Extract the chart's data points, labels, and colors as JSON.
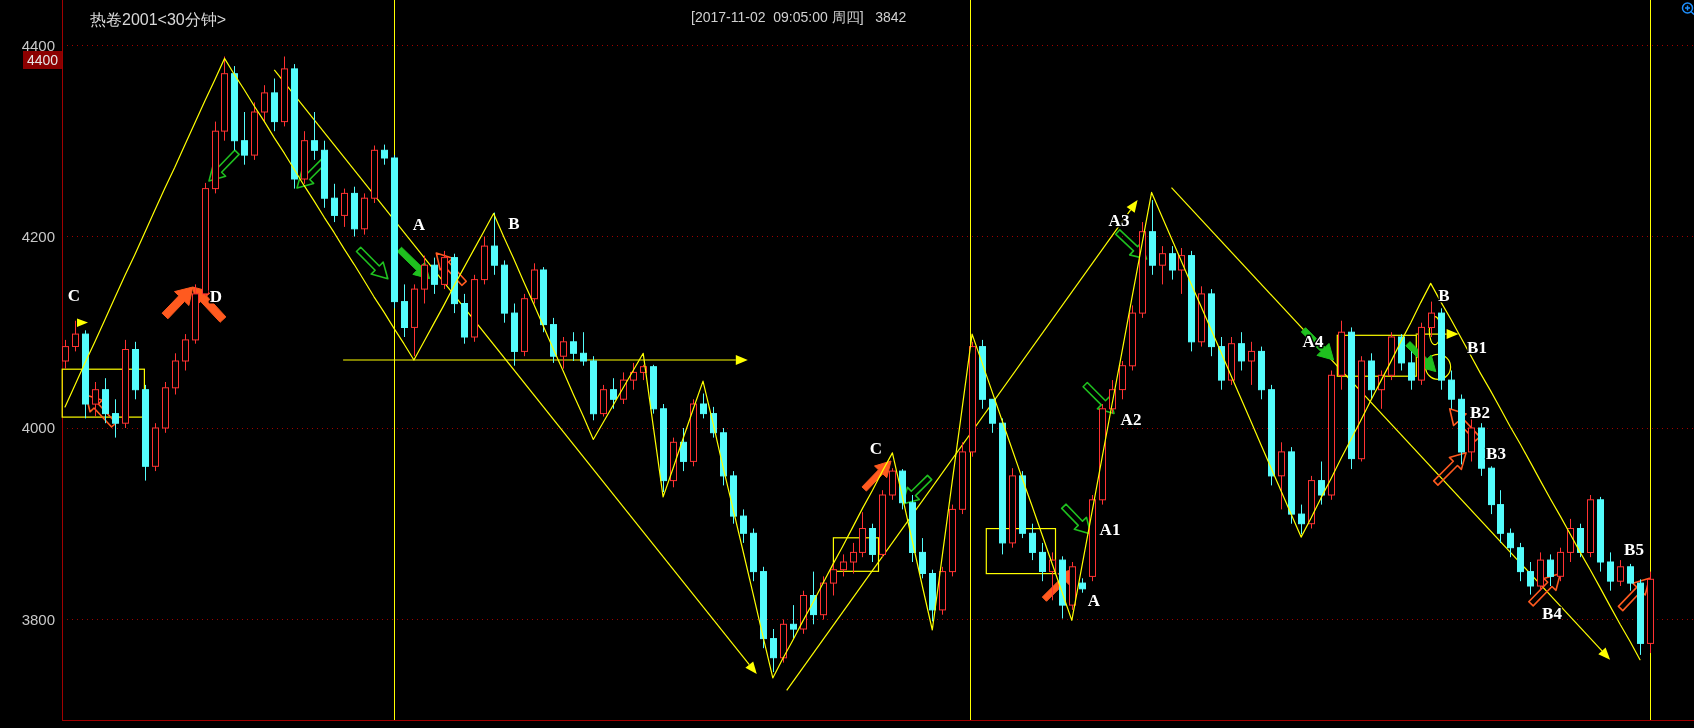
{
  "chart_data": {
    "type": "candlestick",
    "title": "热卷2001<30分钟>",
    "subtitle": "[2017-11-02  09:05:00 周四]   3842",
    "categories": [
      null,
      null,
      null,
      null,
      null,
      null,
      null,
      null,
      null,
      null,
      null,
      null,
      null,
      null,
      null,
      null,
      null,
      null,
      null,
      null,
      null,
      null,
      null,
      null,
      null,
      null,
      null,
      null,
      null,
      null,
      null,
      null,
      null,
      null,
      null,
      null,
      null,
      null,
      null,
      null,
      null,
      null,
      null,
      null,
      null,
      null,
      null,
      null,
      null,
      null,
      null,
      null,
      null,
      null,
      null,
      null,
      null,
      null,
      null,
      null,
      null,
      null,
      null,
      null,
      null,
      null,
      null,
      null,
      null,
      null,
      null,
      null,
      null,
      null,
      null,
      null,
      null,
      null,
      null,
      null,
      null,
      null,
      null,
      null,
      null,
      null,
      null,
      null,
      null,
      null,
      null,
      null,
      null,
      null,
      null,
      null,
      null,
      null,
      null,
      null,
      null,
      null,
      null,
      null,
      null,
      null,
      null,
      null,
      null,
      null,
      null,
      null,
      null,
      null,
      null,
      null,
      null,
      null,
      null,
      null,
      null,
      null,
      null,
      null,
      null,
      null,
      null,
      null,
      null,
      null,
      null,
      null,
      null,
      null,
      null,
      null,
      null,
      null,
      null,
      null,
      null,
      null,
      null,
      null,
      null,
      null,
      null,
      null,
      null,
      null,
      null,
      null,
      null,
      null,
      null,
      null,
      null,
      null,
      null,
      null
    ],
    "ohlc": [
      [
        4070,
        4092,
        4062,
        4085
      ],
      [
        4085,
        4112,
        4080,
        4098
      ],
      [
        4098,
        4102,
        4010,
        4025
      ],
      [
        4025,
        4048,
        4012,
        4040
      ],
      [
        4040,
        4052,
        4005,
        4015
      ],
      [
        4015,
        4030,
        3990,
        4005
      ],
      [
        4005,
        4092,
        4000,
        4082
      ],
      [
        4082,
        4090,
        4030,
        4040
      ],
      [
        4040,
        4045,
        3945,
        3960
      ],
      [
        3960,
        4005,
        3955,
        4000
      ],
      [
        4000,
        4048,
        3995,
        4042
      ],
      [
        4042,
        4078,
        4035,
        4070
      ],
      [
        4070,
        4098,
        4060,
        4092
      ],
      [
        4092,
        4150,
        4088,
        4140
      ],
      [
        4140,
        4256,
        4138,
        4250
      ],
      [
        4250,
        4320,
        4245,
        4310
      ],
      [
        4310,
        4388,
        4300,
        4370
      ],
      [
        4370,
        4378,
        4290,
        4300
      ],
      [
        4300,
        4330,
        4275,
        4285
      ],
      [
        4285,
        4340,
        4280,
        4330
      ],
      [
        4330,
        4358,
        4320,
        4350
      ],
      [
        4350,
        4365,
        4310,
        4320
      ],
      [
        4320,
        4388,
        4315,
        4375
      ],
      [
        4375,
        4380,
        4250,
        4260
      ],
      [
        4260,
        4310,
        4255,
        4300
      ],
      [
        4300,
        4330,
        4280,
        4290
      ],
      [
        4290,
        4300,
        4230,
        4240
      ],
      [
        4240,
        4255,
        4215,
        4222
      ],
      [
        4222,
        4250,
        4210,
        4245
      ],
      [
        4245,
        4252,
        4200,
        4208
      ],
      [
        4208,
        4245,
        4202,
        4240
      ],
      [
        4240,
        4295,
        4235,
        4290
      ],
      [
        4290,
        4296,
        4275,
        4282
      ],
      [
        4282,
        4285,
        4125,
        4132
      ],
      [
        4132,
        4150,
        4095,
        4105
      ],
      [
        4105,
        4150,
        4075,
        4145
      ],
      [
        4145,
        4180,
        4130,
        4170
      ],
      [
        4170,
        4178,
        4140,
        4150
      ],
      [
        4150,
        4185,
        4145,
        4178
      ],
      [
        4178,
        4182,
        4120,
        4130
      ],
      [
        4130,
        4140,
        4088,
        4095
      ],
      [
        4095,
        4160,
        4090,
        4155
      ],
      [
        4155,
        4200,
        4150,
        4190
      ],
      [
        4190,
        4225,
        4160,
        4170
      ],
      [
        4170,
        4175,
        4110,
        4120
      ],
      [
        4120,
        4130,
        4065,
        4080
      ],
      [
        4080,
        4140,
        4075,
        4135
      ],
      [
        4135,
        4172,
        4130,
        4165
      ],
      [
        4165,
        4168,
        4100,
        4108
      ],
      [
        4108,
        4115,
        4068,
        4075
      ],
      [
        4075,
        4095,
        4062,
        4090
      ],
      [
        4090,
        4100,
        4070,
        4078
      ],
      [
        4078,
        4100,
        4065,
        4070
      ],
      [
        4070,
        4075,
        4008,
        4015
      ],
      [
        4015,
        4045,
        4012,
        4040
      ],
      [
        4040,
        4052,
        4020,
        4030
      ],
      [
        4030,
        4058,
        4025,
        4050
      ],
      [
        4050,
        4068,
        4040,
        4058
      ],
      [
        4058,
        4066,
        4050,
        4064
      ],
      [
        4064,
        4066,
        4015,
        4020
      ],
      [
        4020,
        4025,
        3933,
        3945
      ],
      [
        3945,
        3990,
        3938,
        3985
      ],
      [
        3985,
        4000,
        3955,
        3965
      ],
      [
        3965,
        4030,
        3960,
        4025
      ],
      [
        4025,
        4036,
        4010,
        4015
      ],
      [
        4015,
        4022,
        3990,
        3995
      ],
      [
        3995,
        4000,
        3940,
        3950
      ],
      [
        3950,
        3955,
        3900,
        3908
      ],
      [
        3908,
        3915,
        3880,
        3890
      ],
      [
        3890,
        3895,
        3840,
        3850
      ],
      [
        3850,
        3855,
        3770,
        3780
      ],
      [
        3780,
        3790,
        3745,
        3760
      ],
      [
        3760,
        3800,
        3755,
        3795
      ],
      [
        3795,
        3815,
        3780,
        3790
      ],
      [
        3790,
        3830,
        3785,
        3825
      ],
      [
        3825,
        3850,
        3795,
        3805
      ],
      [
        3805,
        3845,
        3800,
        3838
      ],
      [
        3838,
        3860,
        3825,
        3852
      ],
      [
        3852,
        3868,
        3845,
        3860
      ],
      [
        3860,
        3880,
        3848,
        3870
      ],
      [
        3870,
        3912,
        3865,
        3895
      ],
      [
        3895,
        3900,
        3860,
        3868
      ],
      [
        3868,
        3935,
        3865,
        3930
      ],
      [
        3930,
        3958,
        3925,
        3955
      ],
      [
        3955,
        3957,
        3915,
        3922
      ],
      [
        3922,
        3930,
        3860,
        3870
      ],
      [
        3870,
        3885,
        3843,
        3848
      ],
      [
        3848,
        3852,
        3798,
        3810
      ],
      [
        3810,
        3855,
        3805,
        3850
      ],
      [
        3850,
        3920,
        3845,
        3915
      ],
      [
        3915,
        3985,
        3910,
        3975
      ],
      [
        3975,
        4090,
        3970,
        4085
      ],
      [
        4085,
        4092,
        4020,
        4030
      ],
      [
        4030,
        4030,
        3995,
        4005
      ],
      [
        4005,
        4010,
        3868,
        3880
      ],
      [
        3880,
        3958,
        3875,
        3950
      ],
      [
        3950,
        3955,
        3885,
        3890
      ],
      [
        3890,
        3900,
        3862,
        3870
      ],
      [
        3870,
        3880,
        3840,
        3850
      ],
      [
        3850,
        3870,
        3820,
        3862
      ],
      [
        3862,
        3866,
        3801,
        3815
      ],
      [
        3815,
        3860,
        3810,
        3855
      ],
      [
        3838,
        3843,
        3828,
        3832
      ],
      [
        3845,
        3930,
        3840,
        3925
      ],
      [
        3925,
        4025,
        3920,
        4020
      ],
      [
        4020,
        4050,
        4015,
        4040
      ],
      [
        4040,
        4070,
        4030,
        4065
      ],
      [
        4065,
        4128,
        4060,
        4120
      ],
      [
        4120,
        4215,
        4115,
        4205
      ],
      [
        4205,
        4238,
        4160,
        4170
      ],
      [
        4170,
        4190,
        4150,
        4182
      ],
      [
        4182,
        4190,
        4155,
        4165
      ],
      [
        4165,
        4188,
        4140,
        4180
      ],
      [
        4180,
        4185,
        4080,
        4090
      ],
      [
        4090,
        4148,
        4085,
        4140
      ],
      [
        4140,
        4145,
        4075,
        4085
      ],
      [
        4085,
        4095,
        4040,
        4050
      ],
      [
        4050,
        4095,
        4045,
        4088
      ],
      [
        4088,
        4100,
        4060,
        4070
      ],
      [
        4070,
        4090,
        4045,
        4080
      ],
      [
        4080,
        4085,
        4030,
        4040
      ],
      [
        4040,
        4045,
        3940,
        3950
      ],
      [
        3950,
        3985,
        3915,
        3975
      ],
      [
        3975,
        3980,
        3900,
        3910
      ],
      [
        3910,
        3920,
        3889,
        3900
      ],
      [
        3900,
        3950,
        3895,
        3945
      ],
      [
        3945,
        3965,
        3920,
        3930
      ],
      [
        3930,
        4060,
        3925,
        4055
      ],
      [
        4055,
        4112,
        4040,
        4100
      ],
      [
        4100,
        4105,
        3957,
        3968
      ],
      [
        3968,
        4075,
        3965,
        4070
      ],
      [
        4070,
        4078,
        4030,
        4040
      ],
      [
        4040,
        4060,
        4020,
        4055
      ],
      [
        4055,
        4100,
        4050,
        4095
      ],
      [
        4095,
        4098,
        4060,
        4068
      ],
      [
        4068,
        4080,
        4040,
        4050
      ],
      [
        4050,
        4110,
        4045,
        4105
      ],
      [
        4105,
        4132,
        4095,
        4120
      ],
      [
        4120,
        4125,
        4040,
        4050
      ],
      [
        4050,
        4060,
        4020,
        4030
      ],
      [
        4030,
        4035,
        3962,
        3975
      ],
      [
        3975,
        4010,
        3965,
        4000
      ],
      [
        4000,
        4005,
        3950,
        3958
      ],
      [
        3958,
        3960,
        3910,
        3920
      ],
      [
        3920,
        3935,
        3880,
        3890
      ],
      [
        3890,
        3895,
        3865,
        3875
      ],
      [
        3875,
        3880,
        3840,
        3850
      ],
      [
        3850,
        3860,
        3826,
        3835
      ],
      [
        3835,
        3870,
        3830,
        3862
      ],
      [
        3862,
        3868,
        3835,
        3845
      ],
      [
        3845,
        3875,
        3840,
        3870
      ],
      [
        3870,
        3905,
        3860,
        3895
      ],
      [
        3895,
        3900,
        3865,
        3870
      ],
      [
        3870,
        3930,
        3865,
        3925
      ],
      [
        3925,
        3928,
        3850,
        3860
      ],
      [
        3860,
        3870,
        3830,
        3840
      ],
      [
        3840,
        3862,
        3835,
        3855
      ],
      [
        3855,
        3858,
        3830,
        3838
      ],
      [
        3838,
        3842,
        3763,
        3775
      ],
      [
        3775,
        3850,
        3765,
        3842
      ]
    ],
    "colors": [
      "#ff3232",
      "#ff3232",
      "#54fcfc",
      "#ff3232",
      "#54fcfc",
      "#54fcfc",
      "#ff3232",
      "#54fcfc",
      "#54fcfc",
      "#ff3232",
      "#ff3232",
      "#ff3232",
      "#ff3232",
      "#ff3232",
      "#ff3232",
      "#ff3232",
      "#ff3232",
      "#54fcfc",
      "#54fcfc",
      "#ff3232",
      "#ff3232",
      "#54fcfc",
      "#ff3232",
      "#54fcfc",
      "#ff3232",
      "#54fcfc",
      "#54fcfc",
      "#54fcfc",
      "#ff3232",
      "#54fcfc",
      "#ff3232",
      "#ff3232",
      "#54fcfc",
      "#54fcfc",
      "#54fcfc",
      "#ff3232",
      "#ff3232",
      "#54fcfc",
      "#ff3232",
      "#54fcfc",
      "#54fcfc",
      "#ff3232",
      "#ff3232",
      "#54fcfc",
      "#54fcfc",
      "#54fcfc",
      "#ff3232",
      "#ff3232",
      "#54fcfc",
      "#54fcfc",
      "#ff3232",
      "#54fcfc",
      "#54fcfc",
      "#54fcfc",
      "#ff3232",
      "#54fcfc",
      "#ff3232",
      "#ff3232",
      "#ff3232",
      "#54fcfc",
      "#54fcfc",
      "#ff3232",
      "#54fcfc",
      "#ff3232",
      "#54fcfc",
      "#54fcfc",
      "#54fcfc",
      "#54fcfc",
      "#54fcfc",
      "#54fcfc",
      "#54fcfc",
      "#54fcfc",
      "#ff3232",
      "#54fcfc",
      "#ff3232",
      "#54fcfc",
      "#ff3232",
      "#ff3232",
      "#ff3232",
      "#ff3232",
      "#ff3232",
      "#54fcfc",
      "#ff3232",
      "#ff3232",
      "#54fcfc",
      "#54fcfc",
      "#54fcfc",
      "#54fcfc",
      "#ff3232",
      "#ff3232",
      "#ff3232",
      "#ff3232",
      "#54fcfc",
      "#54fcfc",
      "#54fcfc",
      "#ff3232",
      "#54fcfc",
      "#54fcfc",
      "#54fcfc",
      "#ff3232",
      "#54fcfc",
      "#ff3232",
      "#54fcfc",
      "#ff3232",
      "#ff3232",
      "#ff3232",
      "#ff3232",
      "#ff3232",
      "#ff3232",
      "#54fcfc",
      "#ff3232",
      "#54fcfc",
      "#ff3232",
      "#54fcfc",
      "#ff3232",
      "#54fcfc",
      "#54fcfc",
      "#ff3232",
      "#54fcfc",
      "#ff3232",
      "#54fcfc",
      "#54fcfc",
      "#ff3232",
      "#54fcfc",
      "#54fcfc",
      "#ff3232",
      "#54fcfc",
      "#ff3232",
      "#ff3232",
      "#54fcfc",
      "#ff3232",
      "#54fcfc",
      "#ff3232",
      "#ff3232",
      "#54fcfc",
      "#54fcfc",
      "#ff3232",
      "#ff3232",
      "#54fcfc",
      "#54fcfc",
      "#54fcfc",
      "#ff3232",
      "#54fcfc",
      "#54fcfc",
      "#54fcfc",
      "#54fcfc",
      "#54fcfc",
      "#54fcfc",
      "#ff3232",
      "#54fcfc",
      "#ff3232",
      "#ff3232",
      "#54fcfc",
      "#ff3232",
      "#54fcfc",
      "#54fcfc",
      "#ff3232",
      "#54fcfc",
      "#54fcfc",
      "#ff3232"
    ],
    "series": [
      {
        "type": "line",
        "color": "#ffff00",
        "values": [
          4022,
          4045,
          4068,
          4090,
          4113,
          4136,
          4159,
          4181,
          4204,
          4227,
          4250,
          4272,
          4295,
          4318,
          4341,
          4363,
          4386,
          4369,
          4353,
          4336,
          4320,
          4303,
          4287,
          4270,
          4253,
          4237,
          4220,
          4204,
          4187,
          4171,
          4154,
          4137,
          4121,
          4104,
          4088,
          4071,
          4090,
          4109,
          4128,
          4148,
          4167,
          4186,
          4205,
          4224,
          4200,
          4177,
          4153,
          4130,
          4106,
          4082,
          4059,
          4035,
          4012,
          3988,
          4006,
          4024,
          4042,
          4060,
          4078,
          4003,
          3928,
          3958,
          3989,
          4019,
          4049,
          4005,
          3960,
          3916,
          3872,
          3828,
          3783,
          3739,
          3759,
          3778,
          3798,
          3817,
          3837,
          3857,
          3876,
          3896,
          3916,
          3935,
          3955,
          3974,
          3928,
          3882,
          3835,
          3789,
          3866,
          3944,
          4021,
          4098,
          4068,
          4038,
          4008,
          3978,
          3948,
          3919,
          3889,
          3859,
          3829,
          3799,
          3855,
          3911,
          3967,
          4023,
          4078,
          4134,
          4190,
          4246,
          4222,
          4198,
          4174,
          4150,
          4126,
          4102,
          4078,
          4054,
          4030,
          4006,
          3982,
          3958,
          3934,
          3910,
          3886,
          3906,
          3927,
          3947,
          3968,
          3988,
          4008,
          4029,
          4049,
          4069,
          4090,
          4110,
          4131,
          4151,
          4132,
          4114,
          4095,
          4076,
          4057,
          4039,
          4020,
          4001,
          3983,
          3964,
          3945,
          3926,
          3908,
          3889,
          3870,
          3852,
          3833,
          3814,
          3795,
          3777,
          3758,
          null
        ]
      }
    ],
    "ylim": [
      3695,
      4447
    ],
    "yticks": [
      3800,
      4000,
      4200,
      4400
    ],
    "grid": "y",
    "tick_labels": "y",
    "annotations": [
      "4400",
      "C",
      "D",
      "A",
      "B",
      "C",
      "A",
      "A1",
      "A2",
      "A3",
      "A4",
      "B",
      "B1",
      "B2",
      "B3",
      "B4",
      "B5"
    ]
  }
}
